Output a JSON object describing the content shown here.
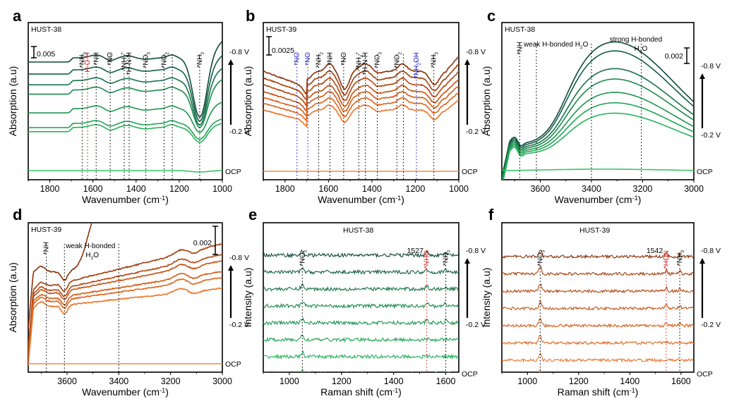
{
  "chart_data": [
    {
      "id": "a",
      "type": "line",
      "panel_label": "a",
      "sample": "HUST-38",
      "xlabel": "Wavenumber (cm⁻¹)",
      "ylabel": "Absorption (a.u)",
      "xlim": [
        1900,
        1000
      ],
      "xticks": [
        1800,
        1600,
        1400,
        1200,
        1000
      ],
      "scale_bar": "0.005",
      "palette": "green",
      "potential_top": "-0.8 V",
      "potential_bottom": "-0.2 V",
      "baseline_label": "OCP",
      "annotations": [
        {
          "label": "*NH₂",
          "x": 1650,
          "color": "#000000"
        },
        {
          "label": "H-O-H",
          "x": 1625,
          "color": "#d62728"
        },
        {
          "label": "*NH",
          "x": 1585,
          "color": "#000000"
        },
        {
          "label": "*NO",
          "x": 1520,
          "color": "#000000"
        },
        {
          "label": "*NH₄⁺",
          "x": 1455,
          "color": "#000000"
        },
        {
          "label": "*H-N-H",
          "x": 1432,
          "color": "#000000"
        },
        {
          "label": "*NO₃",
          "x": 1355,
          "color": "#000000"
        },
        {
          "label": "*NO₂",
          "x": 1270,
          "color": "#000000"
        },
        {
          "label": "",
          "x": 1232,
          "color": "#000000"
        },
        {
          "label": "*NH₃",
          "x": 1105,
          "color": "#000000"
        }
      ],
      "series_count": 8,
      "series": [
        {
          "name": "-0.8 V",
          "offset": 7.0,
          "dip": 6.0
        },
        {
          "name": "",
          "offset": 6.1,
          "dip": 5.2
        },
        {
          "name": "",
          "offset": 5.3,
          "dip": 4.5
        },
        {
          "name": "",
          "offset": 4.6,
          "dip": 3.8
        },
        {
          "name": "",
          "offset": 3.2,
          "dip": 2.4
        },
        {
          "name": "",
          "offset": 2.1,
          "dip": 1.6
        },
        {
          "name": "-0.2 V",
          "offset": 1.8,
          "dip": 1.5
        },
        {
          "name": "OCP",
          "offset": 0.0,
          "dip": 0.05
        }
      ]
    },
    {
      "id": "b",
      "type": "line",
      "panel_label": "b",
      "sample": "HUST-39",
      "xlabel": "Wavenumber (cm⁻¹)",
      "ylabel": "Absorption (a.u)",
      "xlim": [
        1900,
        1000
      ],
      "xticks": [
        1800,
        1600,
        1400,
        1200,
        1000
      ],
      "scale_bar": "0.0025",
      "palette": "orange",
      "potential_top": "-0.8 V",
      "potential_bottom": "-0.2 V",
      "baseline_label": "OCP",
      "annotations": [
        {
          "label": "*NO",
          "x": 1745,
          "color": "#1f1fbf"
        },
        {
          "label": "*NO",
          "x": 1695,
          "color": "#1f1fbf"
        },
        {
          "label": "*NH₂",
          "x": 1645,
          "color": "#000000"
        },
        {
          "label": "*NH",
          "x": 1593,
          "color": "#000000"
        },
        {
          "label": "*NO",
          "x": 1530,
          "color": "#000000"
        },
        {
          "label": "*NH₄⁺",
          "x": 1460,
          "color": "#000000"
        },
        {
          "label": "*H-N-H",
          "x": 1430,
          "color": "#000000"
        },
        {
          "label": "*NO₃",
          "x": 1375,
          "color": "#000000"
        },
        {
          "label": "*NO₂",
          "x": 1285,
          "color": "#000000"
        },
        {
          "label": "",
          "x": 1255,
          "color": "#000000"
        },
        {
          "label": "*NH₂OH",
          "x": 1195,
          "color": "#1f1fbf"
        },
        {
          "label": "*NH₃",
          "x": 1115,
          "color": "#000000"
        }
      ],
      "series": [
        {
          "name": "-0.8 V",
          "offset": 7.0
        },
        {
          "name": "",
          "offset": 6.2
        },
        {
          "name": "",
          "offset": 5.4
        },
        {
          "name": "",
          "offset": 4.6
        },
        {
          "name": "",
          "offset": 3.9
        },
        {
          "name": "",
          "offset": 3.2
        },
        {
          "name": "-0.2 V",
          "offset": 2.4
        },
        {
          "name": "OCP",
          "offset": 0.0
        }
      ]
    },
    {
      "id": "c",
      "type": "line",
      "panel_label": "c",
      "sample": "HUST-38",
      "xlabel": "Wavenumber (cm⁻¹)",
      "ylabel": "Absorption (a.u)",
      "xlim": [
        3750,
        3000
      ],
      "xticks": [
        3600,
        3400,
        3200,
        3000
      ],
      "scale_bar": "0.002",
      "palette": "green",
      "potential_top": "-0.8 V",
      "potential_bottom": "-0.2 V",
      "baseline_label": "OCP",
      "annotations": [
        {
          "label": "*NH",
          "x": 3680,
          "color": "#000000"
        },
        {
          "label": "weak H-bonded H₂O",
          "x": 3615,
          "color": "#000000"
        },
        {
          "label": "",
          "x": 3400,
          "color": "#000000"
        },
        {
          "label": "strong H-bonded H₂O",
          "x": 3205,
          "color": "#000000"
        }
      ],
      "series": [
        {
          "name": "-0.8 V",
          "peak": 7.0,
          "end": 4.6
        },
        {
          "name": "",
          "peak": 6.5,
          "end": 4.0
        },
        {
          "name": "",
          "peak": 5.4,
          "end": 2.6
        },
        {
          "name": "",
          "peak": 4.8,
          "end": 2.8
        },
        {
          "name": "",
          "peak": 4.0,
          "end": 3.3
        },
        {
          "name": "",
          "peak": 3.4,
          "end": 2.8
        },
        {
          "name": "-0.2 V",
          "peak": 2.8,
          "end": 2.2
        },
        {
          "name": "OCP",
          "peak": 0.3,
          "end": 0.2
        }
      ]
    },
    {
      "id": "d",
      "type": "line",
      "panel_label": "d",
      "sample": "HUST-39",
      "xlabel": "Wavenumber (cm⁻¹)",
      "ylabel": "Absorption (a.u)",
      "xlim": [
        3750,
        3000
      ],
      "xticks": [
        3600,
        3400,
        3200,
        3000
      ],
      "scale_bar": "0.002",
      "palette": "orange",
      "potential_top": "-0.8 V",
      "potential_bottom": "-0.2 V",
      "baseline_label": "OCP",
      "annotations": [
        {
          "label": "*NH",
          "x": 3680,
          "color": "#000000"
        },
        {
          "label": "weak H-bonded H₂O",
          "x": 3610,
          "color": "#000000"
        },
        {
          "label": "",
          "x": 3400,
          "color": "#000000"
        }
      ],
      "series": [
        {
          "name": "-0.8 V",
          "offset": 7.0
        },
        {
          "name": "",
          "offset": 5.8
        },
        {
          "name": "",
          "offset": 4.8
        },
        {
          "name": "",
          "offset": 4.2
        },
        {
          "name": "",
          "offset": 3.2
        },
        {
          "name": "",
          "offset": 2.6
        },
        {
          "name": "-0.2 V",
          "offset": 1.6
        },
        {
          "name": "OCP",
          "offset": 0.0
        }
      ]
    },
    {
      "id": "e",
      "type": "line",
      "panel_label": "e",
      "sample": "HUST-38",
      "xlabel": "Raman shift (cm⁻¹)",
      "ylabel": "Intensity (a.u)",
      "xlim": [
        900,
        1650
      ],
      "xticks": [
        1000,
        1200,
        1400,
        1600
      ],
      "palette": "green",
      "potential_top": "-0.8 V",
      "potential_bottom": "-0.2 V",
      "baseline_label": "OCP",
      "peak_label": "1527",
      "annotations": [
        {
          "label": "*NO₃",
          "x": 1050,
          "color": "#000000"
        },
        {
          "label": "*NHO",
          "x": 1527,
          "color": "#d62728"
        },
        {
          "label": "*NH₃",
          "x": 1600,
          "color": "#000000"
        }
      ],
      "series_count": 8,
      "peaks": [
        1050,
        1527,
        1600
      ]
    },
    {
      "id": "f",
      "type": "line",
      "panel_label": "f",
      "sample": "HUST-39",
      "xlabel": "Raman shift (cm⁻¹)",
      "ylabel": "Intensity (a.u)",
      "xlim": [
        900,
        1650
      ],
      "xticks": [
        1000,
        1200,
        1400,
        1600
      ],
      "palette": "orange",
      "potential_top": "-0.8 V",
      "potential_bottom": "-0.2 V",
      "baseline_label": "OCP",
      "peak_label": "1542",
      "annotations": [
        {
          "label": "*NO₃",
          "x": 1050,
          "color": "#000000"
        },
        {
          "label": "*HON",
          "x": 1542,
          "color": "#d62728"
        },
        {
          "label": "*NH₃",
          "x": 1595,
          "color": "#000000"
        }
      ],
      "series_count": 8,
      "peaks": [
        1050,
        1542,
        1595
      ]
    }
  ],
  "palettes": {
    "green": [
      "#0f4a3c",
      "#135f44",
      "#177249",
      "#1a8a4e",
      "#1d9650",
      "#20a553",
      "#25b25a",
      "#3ac46a"
    ],
    "orange": [
      "#8a3208",
      "#a33e0c",
      "#b5470f",
      "#c55213",
      "#d55d18",
      "#e0661e",
      "#ea7429",
      "#f08a4a"
    ]
  }
}
